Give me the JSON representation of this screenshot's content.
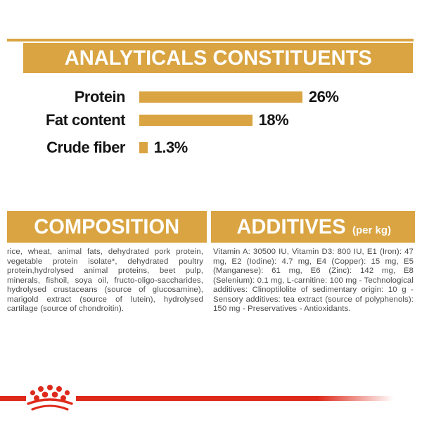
{
  "colors": {
    "gold": "#D9A441",
    "red": "#DE2A1B",
    "heading_text": "#FFFFFF",
    "chart_text": "#151515",
    "body_text": "#4A4A4A",
    "background": "#FFFFFF"
  },
  "header": {
    "title": "ANALYTICALS CONSTITUENTS"
  },
  "chart_data": {
    "type": "bar",
    "orientation": "horizontal",
    "title": "ANALYTICALS CONSTITUENTS",
    "categories": [
      "Protein",
      "Fat content",
      "Crude fiber"
    ],
    "values": [
      26,
      18,
      1.3
    ],
    "value_labels": [
      "26%",
      "18%",
      "1.3%"
    ],
    "unit": "%",
    "xlim": [
      0,
      30
    ],
    "bar_color": "#D9A441",
    "grid": false,
    "legend": false
  },
  "composition": {
    "title": "COMPOSITION",
    "text": "rice, wheat, animal fats, dehydrated pork protein, vegetable protein isolate*, dehydrated poultry protein,hydrolysed animal proteins, beet pulp, minerals, fishoil, soya oil, fructo-oligo-saccharides, hydrolysed crustaceans (source of glucosamine), marigold extract (source of lutein), hydrolysed cartilage (source of chondroitin)."
  },
  "additives": {
    "title": "ADDITIVES",
    "subtitle": "(per kg)",
    "text": "Vitamin A: 30500 IU, Vitamin D3: 800 IU, E1 (Iron): 47 mg, E2 (Iodine): 4.7 mg, E4 (Copper): 15 mg, E5 (Manganese): 61 mg, E6 (Zinc): 142 mg, E8 (Selenium): 0.1 mg, L-carnitine: 100 mg - Technological additives: Clinoptilolite of sedimentary origin: 10 g - Sensory additives: tea extract (source of polyphenols): 150 mg - Preservatives - Antioxidants."
  },
  "footer": {
    "brand_mark": "royal-canin-crown"
  }
}
